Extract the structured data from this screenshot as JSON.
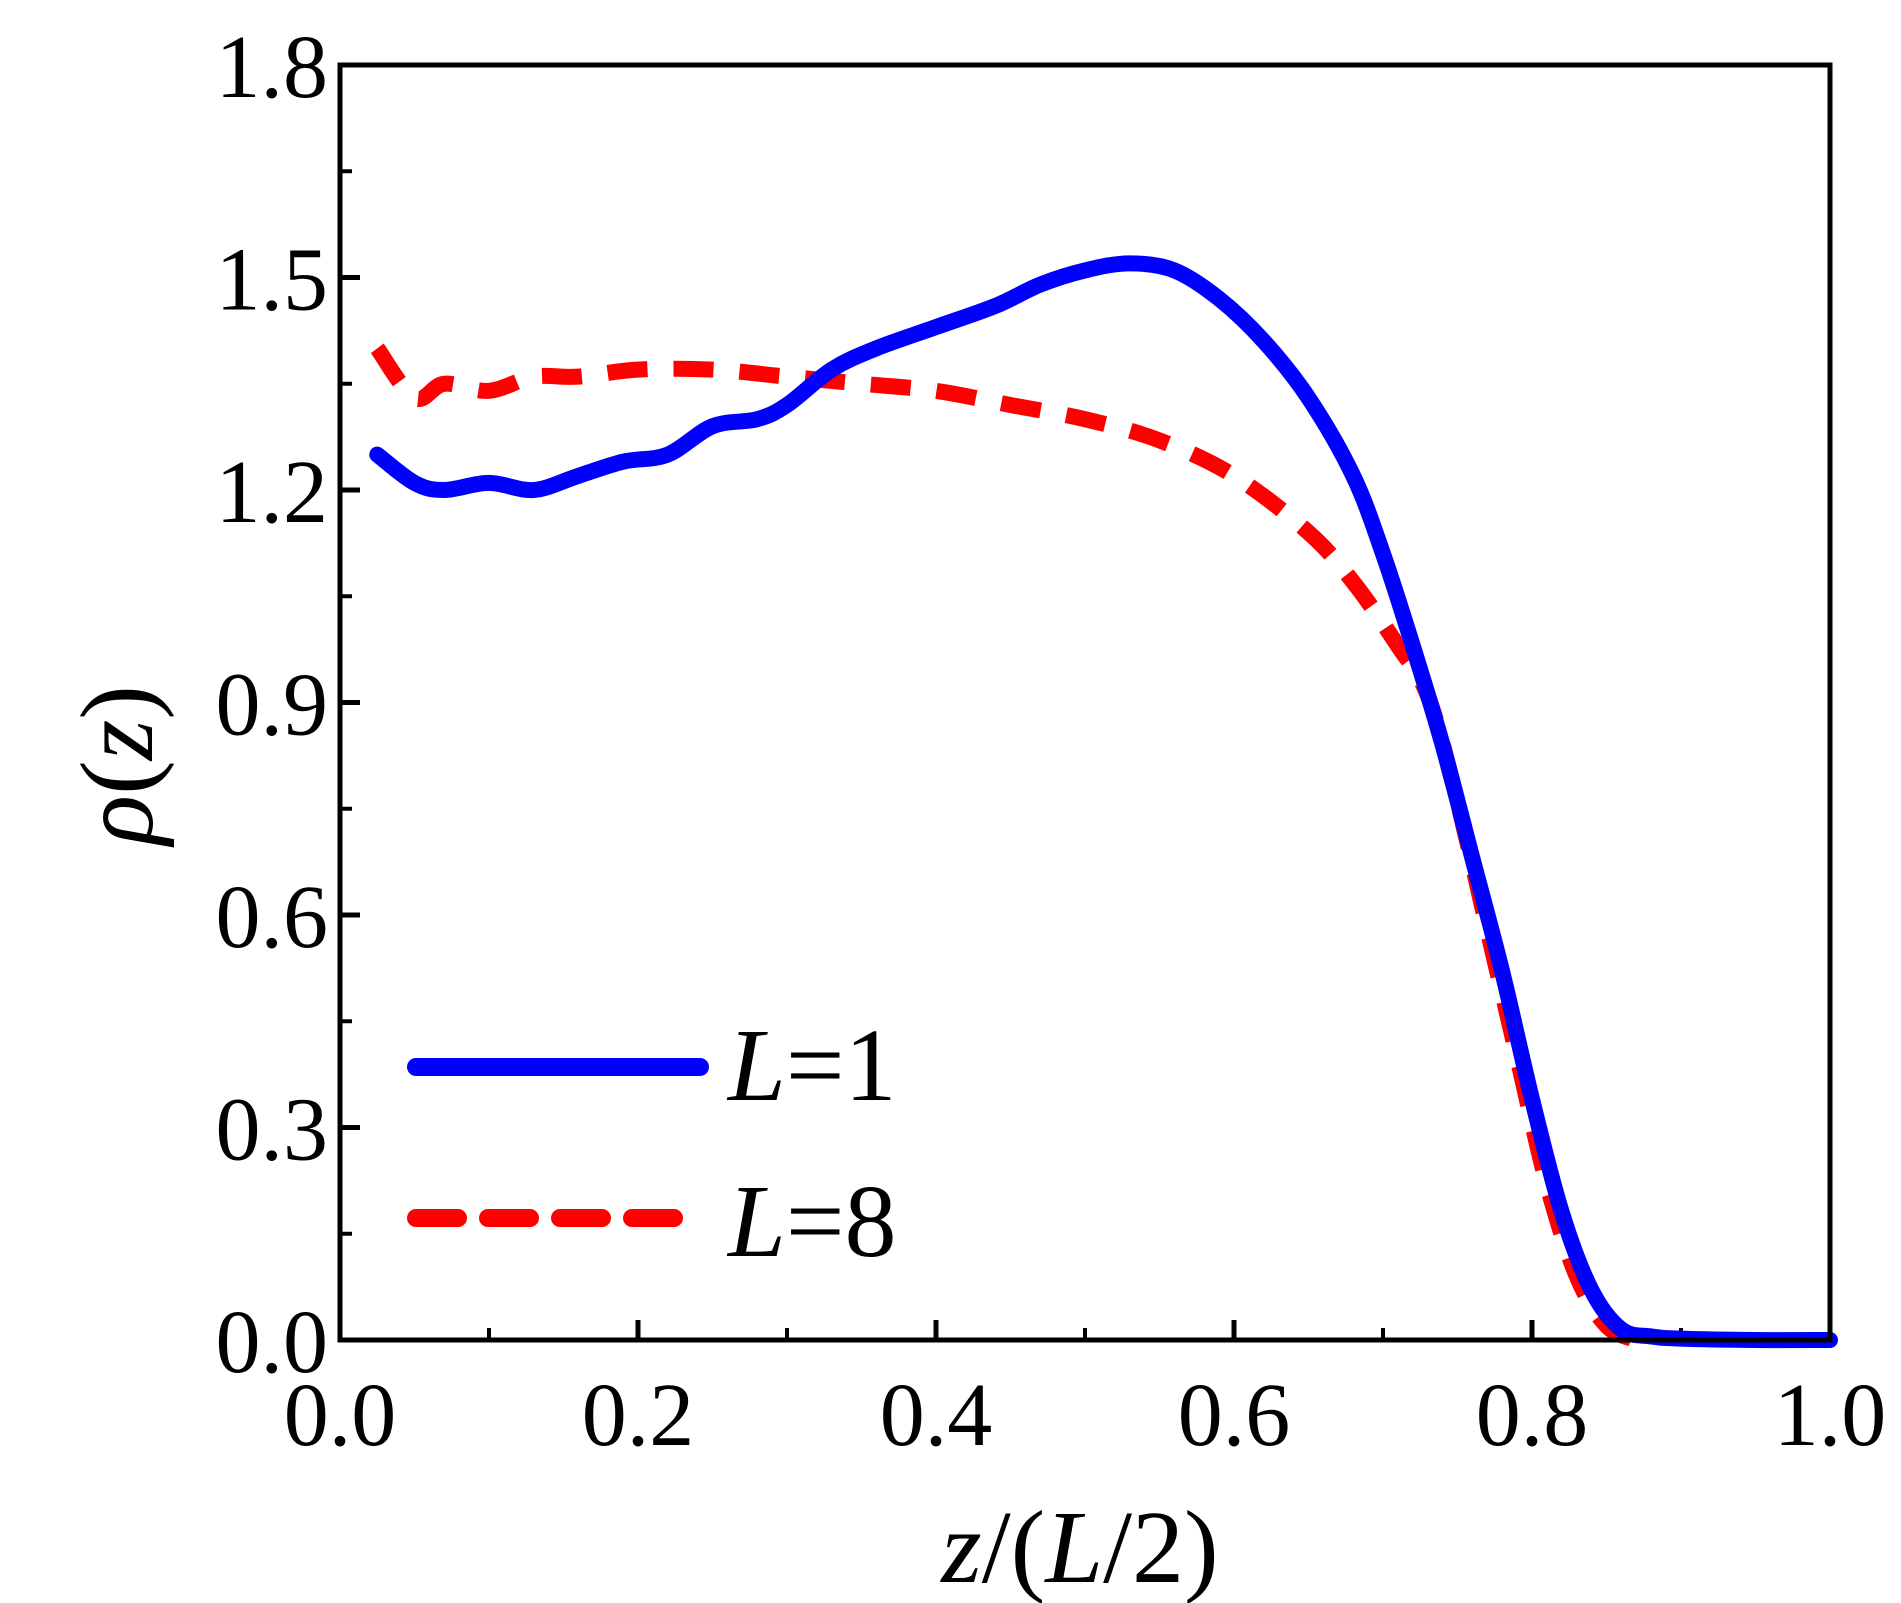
{
  "chart_data": {
    "type": "line",
    "title": "",
    "xlabel": {
      "var": "z",
      "rest": "/(",
      "var2": "L",
      "rest2": "/2)"
    },
    "ylabel": {
      "var": "ρ",
      "rest": "(",
      "var2": "z",
      "rest2": ")"
    },
    "xlim": [
      0.0,
      1.0
    ],
    "ylim": [
      0.0,
      1.8
    ],
    "x_major_ticks": [
      0.0,
      0.2,
      0.4,
      0.6,
      0.8,
      1.0
    ],
    "x_tick_labels": [
      "0.0",
      "0.2",
      "0.4",
      "0.6",
      "0.8",
      "1.0"
    ],
    "x_minor_ticks": [
      0.1,
      0.3,
      0.5,
      0.7,
      0.9
    ],
    "y_major_ticks": [
      0.0,
      0.3,
      0.6,
      0.9,
      1.2,
      1.5,
      1.8
    ],
    "y_tick_labels": [
      "0.0",
      "0.3",
      "0.6",
      "0.9",
      "1.2",
      "1.5",
      "1.8"
    ],
    "y_minor_ticks": [
      0.15,
      0.45,
      0.75,
      1.05,
      1.35,
      1.65
    ],
    "legend_position": "bottom-left",
    "series": [
      {
        "name": "L=1",
        "legend_var": "L",
        "legend_val": "=1",
        "color": "#0000ff",
        "style": "solid",
        "x": [
          0.025,
          0.05,
          0.07,
          0.1,
          0.13,
          0.16,
          0.19,
          0.22,
          0.25,
          0.28,
          0.3,
          0.33,
          0.36,
          0.4,
          0.44,
          0.47,
          0.5,
          0.53,
          0.56,
          0.59,
          0.62,
          0.65,
          0.68,
          0.7,
          0.72,
          0.74,
          0.76,
          0.78,
          0.8,
          0.82,
          0.84,
          0.86,
          0.88,
          0.9,
          0.95,
          1.0
        ],
        "y": [
          1.25,
          1.21,
          1.2,
          1.21,
          1.2,
          1.22,
          1.24,
          1.25,
          1.29,
          1.3,
          1.32,
          1.37,
          1.4,
          1.43,
          1.46,
          1.49,
          1.51,
          1.52,
          1.51,
          1.47,
          1.41,
          1.33,
          1.22,
          1.11,
          0.98,
          0.84,
          0.68,
          0.52,
          0.34,
          0.18,
          0.07,
          0.015,
          0.005,
          0.002,
          0.0,
          0.0
        ]
      },
      {
        "name": "L=8",
        "legend_var": "L",
        "legend_val": "=8",
        "color": "#ff0000",
        "style": "dashed",
        "x": [
          0.025,
          0.05,
          0.07,
          0.1,
          0.13,
          0.16,
          0.2,
          0.25,
          0.3,
          0.35,
          0.4,
          0.45,
          0.5,
          0.55,
          0.6,
          0.65,
          0.68,
          0.71,
          0.73,
          0.75,
          0.77,
          0.79,
          0.81,
          0.83,
          0.85,
          0.87
        ],
        "y": [
          1.4,
          1.33,
          1.35,
          1.34,
          1.36,
          1.36,
          1.37,
          1.37,
          1.36,
          1.35,
          1.34,
          1.32,
          1.3,
          1.27,
          1.22,
          1.14,
          1.07,
          0.98,
          0.91,
          0.76,
          0.58,
          0.4,
          0.22,
          0.09,
          0.02,
          0.0
        ]
      }
    ]
  }
}
